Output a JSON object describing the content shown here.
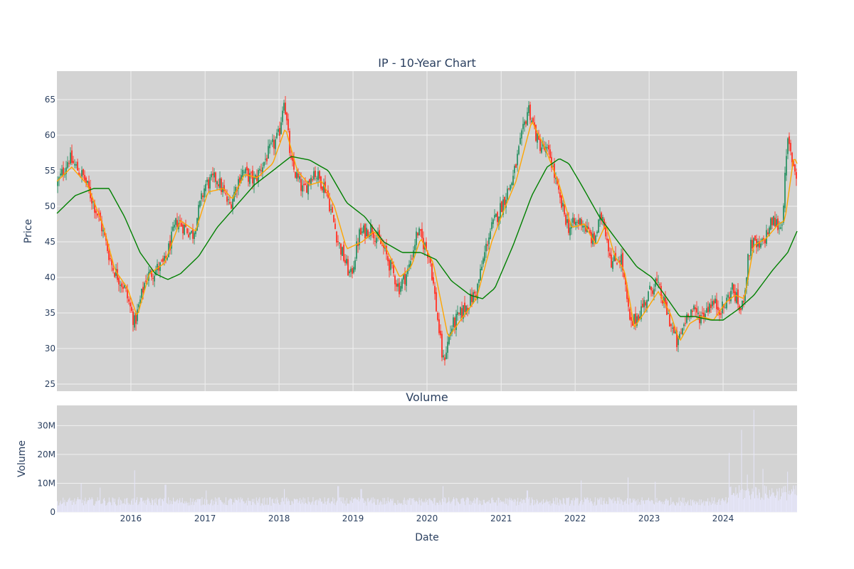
{
  "chart_data": [
    {
      "type": "candlestick",
      "title": "IP - 10-Year Chart",
      "xlabel": "",
      "ylabel": "Price",
      "ylim": [
        24,
        69
      ],
      "yticks": [
        25,
        30,
        35,
        40,
        45,
        50,
        55,
        60,
        65
      ],
      "x_range": [
        "2015-01-01",
        "2024-12-31"
      ],
      "grid": true,
      "colors": {
        "plot_bg": "#d3d3d3",
        "grid": "#f0f0f0",
        "increasing": "#3d9970",
        "decreasing": "#ff4136",
        "ma_short": "#ffa500",
        "ma_long": "#008000"
      },
      "price_path": [
        [
          "2015-01-01",
          53.0
        ],
        [
          "2015-03-01",
          56.8
        ],
        [
          "2015-05-15",
          54.0
        ],
        [
          "2015-08-01",
          48.0
        ],
        [
          "2015-10-01",
          41.5
        ],
        [
          "2015-12-01",
          38.5
        ],
        [
          "2016-01-20",
          33.5
        ],
        [
          "2016-03-15",
          40.0
        ],
        [
          "2016-06-15",
          42.0
        ],
        [
          "2016-08-15",
          48.0
        ],
        [
          "2016-11-01",
          46.0
        ],
        [
          "2017-01-01",
          53.0
        ],
        [
          "2017-03-01",
          54.0
        ],
        [
          "2017-05-01",
          50.0
        ],
        [
          "2017-07-01",
          55.0
        ],
        [
          "2017-09-01",
          53.5
        ],
        [
          "2017-11-01",
          57.0
        ],
        [
          "2018-01-01",
          60.0
        ],
        [
          "2018-01-25",
          65.5
        ],
        [
          "2018-03-01",
          56.0
        ],
        [
          "2018-05-01",
          52.0
        ],
        [
          "2018-06-20",
          55.0
        ],
        [
          "2018-08-20",
          52.5
        ],
        [
          "2018-10-20",
          45.0
        ],
        [
          "2018-12-20",
          40.0
        ],
        [
          "2019-02-01",
          46.0
        ],
        [
          "2019-04-01",
          47.0
        ],
        [
          "2019-06-01",
          44.0
        ],
        [
          "2019-08-15",
          38.5
        ],
        [
          "2019-10-01",
          41.0
        ],
        [
          "2019-11-15",
          46.5
        ],
        [
          "2020-01-15",
          43.0
        ],
        [
          "2020-03-20",
          28.0
        ],
        [
          "2020-05-01",
          33.0
        ],
        [
          "2020-07-01",
          35.5
        ],
        [
          "2020-09-01",
          38.0
        ],
        [
          "2020-11-01",
          46.0
        ],
        [
          "2021-01-01",
          50.0
        ],
        [
          "2021-03-01",
          54.0
        ],
        [
          "2021-05-15",
          64.0
        ],
        [
          "2021-07-01",
          59.0
        ],
        [
          "2021-09-01",
          57.0
        ],
        [
          "2021-10-15",
          51.0
        ],
        [
          "2021-12-01",
          47.0
        ],
        [
          "2022-02-01",
          48.0
        ],
        [
          "2022-04-01",
          45.0
        ],
        [
          "2022-05-15",
          49.0
        ],
        [
          "2022-07-01",
          42.0
        ],
        [
          "2022-08-15",
          43.0
        ],
        [
          "2022-10-01",
          33.0
        ],
        [
          "2022-12-01",
          36.0
        ],
        [
          "2023-02-01",
          39.5
        ],
        [
          "2023-04-01",
          35.0
        ],
        [
          "2023-05-20",
          30.5
        ],
        [
          "2023-07-15",
          35.5
        ],
        [
          "2023-09-15",
          34.5
        ],
        [
          "2023-11-01",
          36.5
        ],
        [
          "2024-01-01",
          35.5
        ],
        [
          "2024-02-15",
          38.5
        ],
        [
          "2024-04-01",
          35.0
        ],
        [
          "2024-05-15",
          45.0
        ],
        [
          "2024-07-01",
          44.0
        ],
        [
          "2024-09-01",
          48.0
        ],
        [
          "2024-10-15",
          47.0
        ],
        [
          "2024-11-15",
          59.0
        ],
        [
          "2024-12-31",
          54.0
        ]
      ],
      "series": [
        {
          "values": [
            [
              "2015-01-01",
              53.5
            ],
            [
              "2015-03-15",
              55.5
            ],
            [
              "2015-06-01",
              53.0
            ],
            [
              "2015-08-15",
              47.5
            ],
            [
              "2015-10-15",
              41.0
            ],
            [
              "2015-12-15",
              38.5
            ],
            [
              "2016-02-01",
              34.5
            ],
            [
              "2016-04-01",
              40.5
            ],
            [
              "2016-06-15",
              42.0
            ],
            [
              "2016-09-01",
              48.0
            ],
            [
              "2016-11-15",
              46.5
            ],
            [
              "2017-01-15",
              52.0
            ],
            [
              "2017-04-01",
              52.5
            ],
            [
              "2017-05-15",
              51.0
            ],
            [
              "2017-07-15",
              54.5
            ],
            [
              "2017-09-15",
              54.0
            ],
            [
              "2017-12-01",
              56.0
            ],
            [
              "2018-02-01",
              61.0
            ],
            [
              "2018-04-01",
              55.0
            ],
            [
              "2018-06-01",
              53.0
            ],
            [
              "2018-08-01",
              53.5
            ],
            [
              "2018-10-01",
              50.0
            ],
            [
              "2018-12-01",
              44.0
            ],
            [
              "2019-02-15",
              45.0
            ],
            [
              "2019-04-15",
              46.5
            ],
            [
              "2019-06-15",
              44.0
            ],
            [
              "2019-08-20",
              40.0
            ],
            [
              "2019-10-15",
              41.5
            ],
            [
              "2019-12-01",
              45.5
            ],
            [
              "2020-02-01",
              42.0
            ],
            [
              "2020-04-15",
              31.5
            ],
            [
              "2020-06-15",
              34.0
            ],
            [
              "2020-09-01",
              37.0
            ],
            [
              "2020-11-15",
              45.0
            ],
            [
              "2021-01-15",
              49.5
            ],
            [
              "2021-03-15",
              53.5
            ],
            [
              "2021-06-01",
              62.0
            ],
            [
              "2021-08-01",
              58.5
            ],
            [
              "2021-10-15",
              53.0
            ],
            [
              "2021-12-15",
              47.0
            ],
            [
              "2022-02-15",
              47.5
            ],
            [
              "2022-04-15",
              44.5
            ],
            [
              "2022-06-01",
              47.5
            ],
            [
              "2022-07-15",
              43.0
            ],
            [
              "2022-09-01",
              41.0
            ],
            [
              "2022-10-20",
              33.0
            ],
            [
              "2022-12-20",
              35.5
            ],
            [
              "2023-02-15",
              38.0
            ],
            [
              "2023-04-15",
              35.0
            ],
            [
              "2023-06-01",
              31.0
            ],
            [
              "2023-07-20",
              33.5
            ],
            [
              "2023-09-15",
              34.5
            ],
            [
              "2023-11-15",
              34.0
            ],
            [
              "2024-01-15",
              36.5
            ],
            [
              "2024-03-01",
              37.5
            ],
            [
              "2024-04-15",
              37.0
            ],
            [
              "2024-06-01",
              44.5
            ],
            [
              "2024-08-01",
              45.5
            ],
            [
              "2024-10-01",
              47.5
            ],
            [
              "2024-11-01",
              48.0
            ],
            [
              "2024-12-15",
              57.0
            ],
            [
              "2024-12-31",
              56.0
            ]
          ]
        },
        {
          "values": [
            [
              "2015-01-01",
              49.0
            ],
            [
              "2015-04-01",
              51.5
            ],
            [
              "2015-07-01",
              52.5
            ],
            [
              "2015-09-15",
              52.5
            ],
            [
              "2015-12-01",
              48.5
            ],
            [
              "2016-02-15",
              43.5
            ],
            [
              "2016-05-01",
              40.5
            ],
            [
              "2016-07-01",
              39.7
            ],
            [
              "2016-09-01",
              40.5
            ],
            [
              "2016-12-01",
              43.0
            ],
            [
              "2017-03-01",
              47.0
            ],
            [
              "2017-06-01",
              50.0
            ],
            [
              "2017-09-01",
              53.0
            ],
            [
              "2017-12-01",
              55.0
            ],
            [
              "2018-03-01",
              57.0
            ],
            [
              "2018-06-01",
              56.5
            ],
            [
              "2018-09-01",
              55.0
            ],
            [
              "2018-12-01",
              50.5
            ],
            [
              "2019-03-01",
              48.5
            ],
            [
              "2019-06-01",
              45.0
            ],
            [
              "2019-09-01",
              43.5
            ],
            [
              "2019-12-01",
              43.5
            ],
            [
              "2020-02-15",
              42.5
            ],
            [
              "2020-05-01",
              39.5
            ],
            [
              "2020-08-01",
              37.5
            ],
            [
              "2020-10-01",
              37.0
            ],
            [
              "2020-12-01",
              38.5
            ],
            [
              "2021-03-01",
              44.5
            ],
            [
              "2021-06-01",
              51.5
            ],
            [
              "2021-08-15",
              55.5
            ],
            [
              "2021-10-15",
              56.7
            ],
            [
              "2021-12-01",
              56.0
            ],
            [
              "2022-02-01",
              53.0
            ],
            [
              "2022-05-01",
              48.5
            ],
            [
              "2022-08-01",
              45.0
            ],
            [
              "2022-11-01",
              41.5
            ],
            [
              "2023-01-15",
              40.0
            ],
            [
              "2023-04-01",
              37.0
            ],
            [
              "2023-06-01",
              34.5
            ],
            [
              "2023-08-15",
              34.5
            ],
            [
              "2023-11-01",
              34.0
            ],
            [
              "2024-01-01",
              34.0
            ],
            [
              "2024-03-15",
              35.5
            ],
            [
              "2024-06-01",
              37.5
            ],
            [
              "2024-09-01",
              41.0
            ],
            [
              "2024-11-15",
              43.5
            ],
            [
              "2024-12-31",
              46.5
            ]
          ]
        }
      ]
    },
    {
      "type": "bar",
      "title": "Volume",
      "xlabel": "Date",
      "ylabel": "Volume",
      "ylim": [
        0,
        37000000
      ],
      "yticks": [
        0,
        10000000,
        20000000,
        30000000
      ],
      "ytick_labels": [
        "0",
        "10M",
        "20M",
        "30M"
      ],
      "xticks": [
        "2016-01-01",
        "2017-01-01",
        "2018-01-01",
        "2019-01-01",
        "2020-01-01",
        "2021-01-01",
        "2022-01-01",
        "2023-01-01",
        "2024-01-01"
      ],
      "xtick_labels": [
        "2016",
        "2017",
        "2018",
        "2019",
        "2020",
        "2021",
        "2022",
        "2023",
        "2024"
      ],
      "color": "#e6e6fa",
      "volume_spikes": [
        [
          "2015-05-01",
          10000000
        ],
        [
          "2015-08-01",
          8500000
        ],
        [
          "2016-01-20",
          14500000
        ],
        [
          "2016-06-20",
          9500000
        ],
        [
          "2017-01-05",
          7500000
        ],
        [
          "2018-01-26",
          8000000
        ],
        [
          "2018-10-20",
          9000000
        ],
        [
          "2019-02-10",
          8000000
        ],
        [
          "2020-03-20",
          9000000
        ],
        [
          "2021-05-10",
          7500000
        ],
        [
          "2022-02-01",
          11000000
        ],
        [
          "2022-09-20",
          12000000
        ],
        [
          "2023-02-01",
          10500000
        ],
        [
          "2024-02-01",
          20500000
        ],
        [
          "2024-04-01",
          28500000
        ],
        [
          "2024-05-01",
          13000000
        ],
        [
          "2024-06-01",
          35500000
        ],
        [
          "2024-07-15",
          15000000
        ],
        [
          "2024-11-15",
          14000000
        ]
      ]
    }
  ]
}
